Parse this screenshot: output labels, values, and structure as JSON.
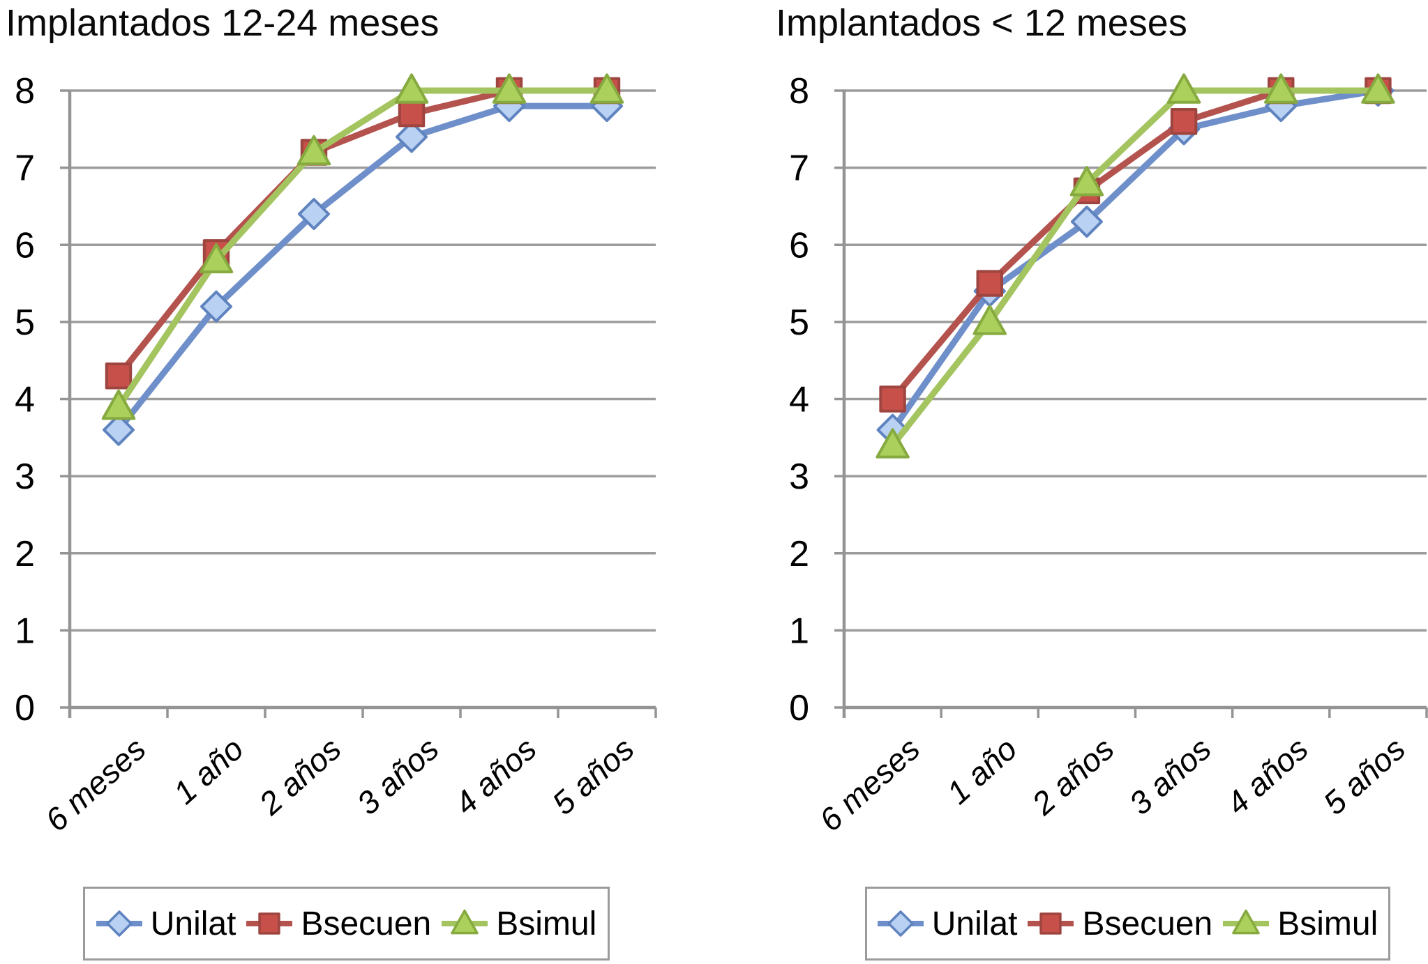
{
  "page": {
    "background": "#ffffff"
  },
  "styles": {
    "gridline_color": "#9c9c9c",
    "axis_color": "#949494",
    "text_color": "#000000",
    "legend_border_color": "#9b9b9b"
  },
  "chart_data": [
    {
      "type": "line",
      "title": "Implantados 12-24 meses",
      "categories": [
        "6 meses",
        "1 año",
        "2 años",
        "3 años",
        "4 años",
        "5 años"
      ],
      "series": [
        {
          "name": "Unilat",
          "marker": "diamond",
          "color": "#6e8fc9",
          "marker_fill": "#b9d1f3",
          "marker_edge": "#5f83bf",
          "values": [
            3.6,
            5.2,
            6.4,
            7.4,
            7.8,
            7.8
          ]
        },
        {
          "name": "Bsecuen",
          "marker": "square",
          "color": "#b4534e",
          "marker_fill": "#c7504a",
          "marker_edge": "#9e4540",
          "values": [
            4.3,
            5.9,
            7.2,
            7.7,
            8.0,
            8.0
          ]
        },
        {
          "name": "Bsimul",
          "marker": "triangle",
          "color": "#a3c45f",
          "marker_fill": "#abd05c",
          "marker_edge": "#86aa3f",
          "values": [
            3.9,
            5.8,
            7.2,
            8.0,
            8.0,
            8.0
          ]
        }
      ],
      "ylim": [
        0,
        8
      ],
      "yticks": [
        0,
        1,
        2,
        3,
        4,
        5,
        6,
        7,
        8
      ],
      "grid": true,
      "legend_position": "bottom"
    },
    {
      "type": "line",
      "title": "Implantados < 12 meses",
      "categories": [
        "6 meses",
        "1 año",
        "2 años",
        "3 años",
        "4 años",
        "5 años"
      ],
      "series": [
        {
          "name": "Unilat",
          "marker": "diamond",
          "color": "#6e8fc9",
          "marker_fill": "#b9d1f3",
          "marker_edge": "#5f83bf",
          "values": [
            3.6,
            5.4,
            6.3,
            7.5,
            7.8,
            8.0
          ]
        },
        {
          "name": "Bsecuen",
          "marker": "square",
          "color": "#b4534e",
          "marker_fill": "#c7504a",
          "marker_edge": "#9e4540",
          "values": [
            4.0,
            5.5,
            6.7,
            7.6,
            8.0,
            8.0
          ]
        },
        {
          "name": "Bsimul",
          "marker": "triangle",
          "color": "#a3c45f",
          "marker_fill": "#abd05c",
          "marker_edge": "#86aa3f",
          "values": [
            3.4,
            5.0,
            6.8,
            8.0,
            8.0,
            8.0
          ]
        }
      ],
      "ylim": [
        0,
        8
      ],
      "yticks": [
        0,
        1,
        2,
        3,
        4,
        5,
        6,
        7,
        8
      ],
      "grid": true,
      "legend_position": "bottom"
    }
  ]
}
